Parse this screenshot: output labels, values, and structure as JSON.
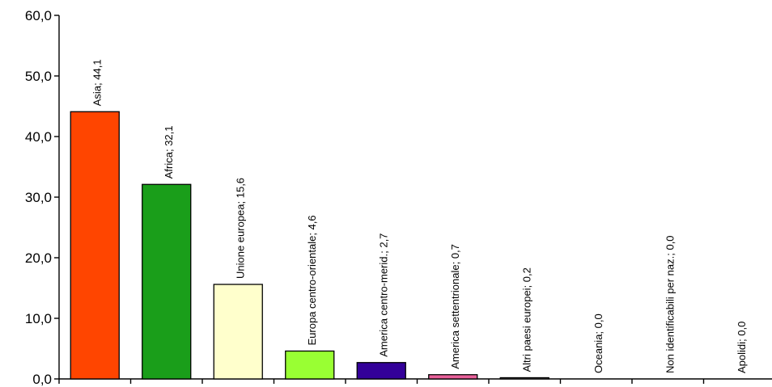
{
  "chart_data": {
    "type": "bar",
    "title": "",
    "xlabel": "",
    "ylabel": "",
    "ylim": [
      0,
      60
    ],
    "yticks": [
      0,
      10,
      20,
      30,
      40,
      50,
      60
    ],
    "ytick_labels": [
      "0,0",
      "10,0",
      "20,0",
      "30,0",
      "40,0",
      "50,0",
      "60,0"
    ],
    "grid": false,
    "legend": "none",
    "categories": [
      "Asia",
      "Africa",
      "Unione europea",
      "Europa centro-orientale",
      "America centro-merid.",
      "America settentrionale",
      "Altri paesi europei",
      "Oceania",
      "Non identificabili per naz.",
      "Apolidi"
    ],
    "values": [
      44.1,
      32.1,
      15.6,
      4.6,
      2.7,
      0.7,
      0.2,
      0.0,
      0.0,
      0.0
    ],
    "data_labels": [
      "Asia; 44,1",
      "Africa; 32,1",
      "Unione europea; 15,6",
      "Europa centro-orientale; 4,6",
      "America centro-merid.; 2,7",
      "America settentrionale; 0,7",
      "Altri paesi europei; 0,2",
      "Oceania; 0,0",
      "Non identificabili per naz.; 0,0",
      "Apolidi; 0,0"
    ],
    "colors": [
      "#ff4500",
      "#1a9e1a",
      "#ffffcc",
      "#99ff33",
      "#330099",
      "#e8609a",
      "#9a9a9a",
      "#9a9a9a",
      "#9a9a9a",
      "#9a9a9a"
    ]
  }
}
